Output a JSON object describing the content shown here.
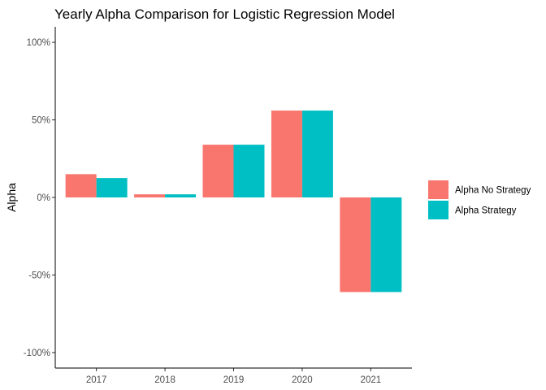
{
  "chart_data": {
    "type": "bar",
    "title": "Yearly Alpha Comparison for Logistic Regression Model",
    "xlabel": "",
    "ylabel": "Alpha",
    "categories": [
      "2017",
      "2018",
      "2019",
      "2020",
      "2021"
    ],
    "series": [
      {
        "name": "Alpha No Strategy",
        "color": "#F8766D",
        "values": [
          0.15,
          0.02,
          0.34,
          0.56,
          -0.61
        ]
      },
      {
        "name": "Alpha Strategy",
        "color": "#00BFC4",
        "values": [
          0.125,
          0.02,
          0.34,
          0.56,
          -0.61
        ]
      }
    ],
    "ylim": [
      -1.1,
      1.1
    ],
    "yticks": [
      -1.0,
      -0.5,
      0.0,
      0.5,
      1.0
    ],
    "ytick_labels": [
      "-100%",
      "-50%",
      "0%",
      "50%",
      "100%"
    ],
    "grid": false,
    "legend_position": "right"
  }
}
